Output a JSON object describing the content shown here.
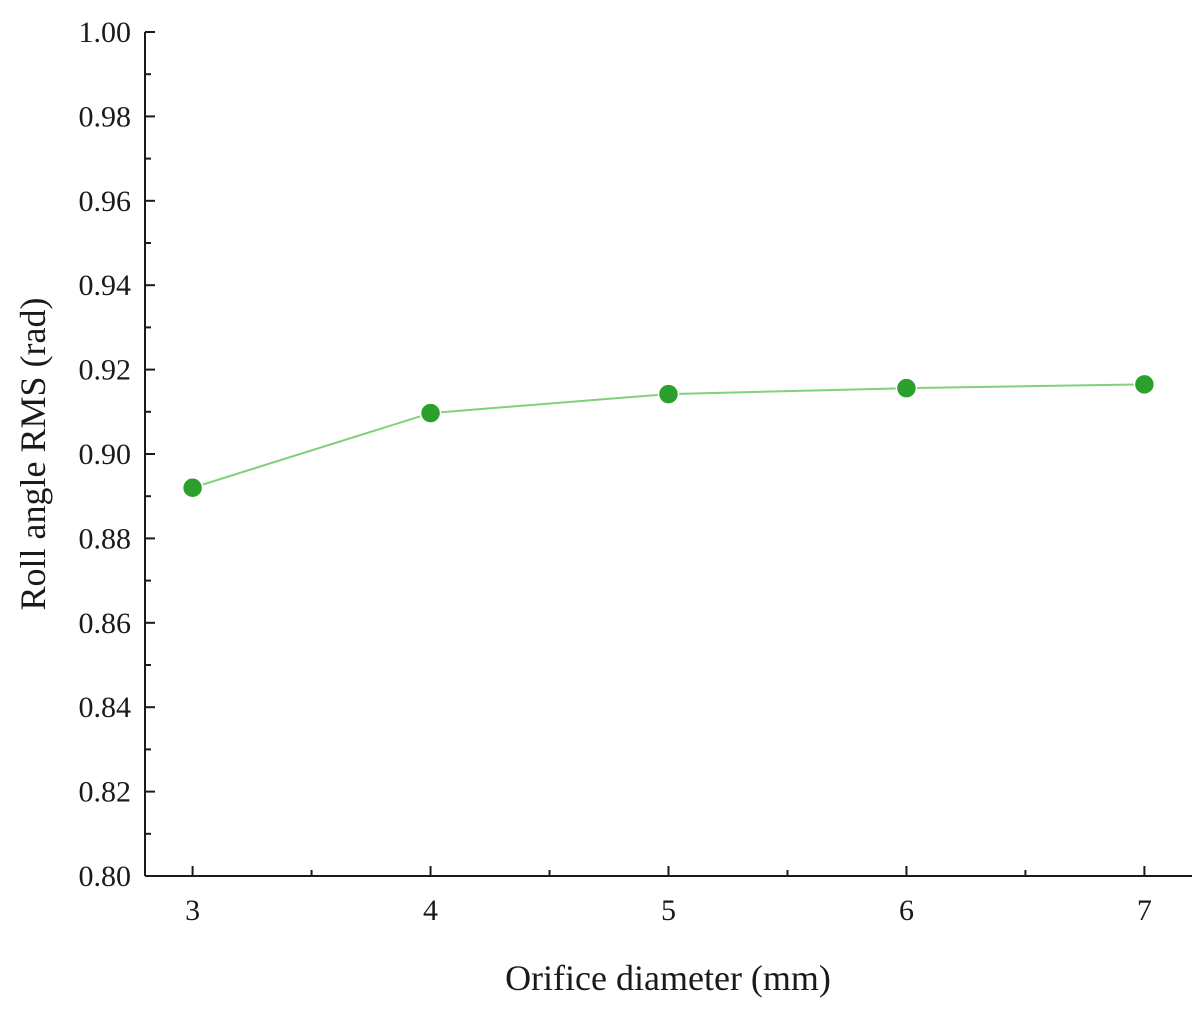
{
  "chart_data": {
    "type": "line",
    "title": "",
    "xlabel": "Orifice diameter (mm)",
    "ylabel": "Roll angle RMS (rad)",
    "x": [
      3,
      4,
      5,
      6,
      7
    ],
    "series": [
      {
        "values": [
          0.892,
          0.9097,
          0.9142,
          0.9156,
          0.9165
        ],
        "color": "#2ca02c",
        "marker": "circle"
      }
    ],
    "xlim": [
      2.8,
      7.2
    ],
    "ylim": [
      0.8,
      1.0
    ],
    "x_ticks": [
      "3",
      "4",
      "5",
      "6",
      "7"
    ],
    "y_ticks": [
      "0.80",
      "0.82",
      "0.84",
      "0.86",
      "0.88",
      "0.90",
      "0.92",
      "0.94",
      "0.96",
      "0.98",
      "1.00"
    ],
    "grid": false,
    "legend": "none"
  }
}
